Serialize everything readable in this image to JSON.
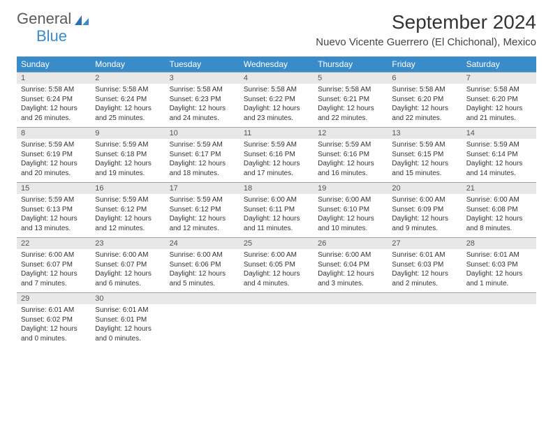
{
  "logo": {
    "general": "General",
    "blue": "Blue"
  },
  "header": {
    "month_title": "September 2024",
    "location": "Nuevo Vicente Guerrero (El Chichonal), Mexico"
  },
  "colors": {
    "header_bg": "#3a8bc9",
    "header_text": "#ffffff",
    "daynum_bg": "#e8e8e8",
    "border": "#9aa7b0",
    "body_text": "#333333"
  },
  "day_names": [
    "Sunday",
    "Monday",
    "Tuesday",
    "Wednesday",
    "Thursday",
    "Friday",
    "Saturday"
  ],
  "weeks": [
    {
      "nums": [
        "1",
        "2",
        "3",
        "4",
        "5",
        "6",
        "7"
      ],
      "cells": [
        {
          "sunrise": "Sunrise: 5:58 AM",
          "sunset": "Sunset: 6:24 PM",
          "d1": "Daylight: 12 hours",
          "d2": "and 26 minutes."
        },
        {
          "sunrise": "Sunrise: 5:58 AM",
          "sunset": "Sunset: 6:24 PM",
          "d1": "Daylight: 12 hours",
          "d2": "and 25 minutes."
        },
        {
          "sunrise": "Sunrise: 5:58 AM",
          "sunset": "Sunset: 6:23 PM",
          "d1": "Daylight: 12 hours",
          "d2": "and 24 minutes."
        },
        {
          "sunrise": "Sunrise: 5:58 AM",
          "sunset": "Sunset: 6:22 PM",
          "d1": "Daylight: 12 hours",
          "d2": "and 23 minutes."
        },
        {
          "sunrise": "Sunrise: 5:58 AM",
          "sunset": "Sunset: 6:21 PM",
          "d1": "Daylight: 12 hours",
          "d2": "and 22 minutes."
        },
        {
          "sunrise": "Sunrise: 5:58 AM",
          "sunset": "Sunset: 6:20 PM",
          "d1": "Daylight: 12 hours",
          "d2": "and 22 minutes."
        },
        {
          "sunrise": "Sunrise: 5:58 AM",
          "sunset": "Sunset: 6:20 PM",
          "d1": "Daylight: 12 hours",
          "d2": "and 21 minutes."
        }
      ]
    },
    {
      "nums": [
        "8",
        "9",
        "10",
        "11",
        "12",
        "13",
        "14"
      ],
      "cells": [
        {
          "sunrise": "Sunrise: 5:59 AM",
          "sunset": "Sunset: 6:19 PM",
          "d1": "Daylight: 12 hours",
          "d2": "and 20 minutes."
        },
        {
          "sunrise": "Sunrise: 5:59 AM",
          "sunset": "Sunset: 6:18 PM",
          "d1": "Daylight: 12 hours",
          "d2": "and 19 minutes."
        },
        {
          "sunrise": "Sunrise: 5:59 AM",
          "sunset": "Sunset: 6:17 PM",
          "d1": "Daylight: 12 hours",
          "d2": "and 18 minutes."
        },
        {
          "sunrise": "Sunrise: 5:59 AM",
          "sunset": "Sunset: 6:16 PM",
          "d1": "Daylight: 12 hours",
          "d2": "and 17 minutes."
        },
        {
          "sunrise": "Sunrise: 5:59 AM",
          "sunset": "Sunset: 6:16 PM",
          "d1": "Daylight: 12 hours",
          "d2": "and 16 minutes."
        },
        {
          "sunrise": "Sunrise: 5:59 AM",
          "sunset": "Sunset: 6:15 PM",
          "d1": "Daylight: 12 hours",
          "d2": "and 15 minutes."
        },
        {
          "sunrise": "Sunrise: 5:59 AM",
          "sunset": "Sunset: 6:14 PM",
          "d1": "Daylight: 12 hours",
          "d2": "and 14 minutes."
        }
      ]
    },
    {
      "nums": [
        "15",
        "16",
        "17",
        "18",
        "19",
        "20",
        "21"
      ],
      "cells": [
        {
          "sunrise": "Sunrise: 5:59 AM",
          "sunset": "Sunset: 6:13 PM",
          "d1": "Daylight: 12 hours",
          "d2": "and 13 minutes."
        },
        {
          "sunrise": "Sunrise: 5:59 AM",
          "sunset": "Sunset: 6:12 PM",
          "d1": "Daylight: 12 hours",
          "d2": "and 12 minutes."
        },
        {
          "sunrise": "Sunrise: 5:59 AM",
          "sunset": "Sunset: 6:12 PM",
          "d1": "Daylight: 12 hours",
          "d2": "and 12 minutes."
        },
        {
          "sunrise": "Sunrise: 6:00 AM",
          "sunset": "Sunset: 6:11 PM",
          "d1": "Daylight: 12 hours",
          "d2": "and 11 minutes."
        },
        {
          "sunrise": "Sunrise: 6:00 AM",
          "sunset": "Sunset: 6:10 PM",
          "d1": "Daylight: 12 hours",
          "d2": "and 10 minutes."
        },
        {
          "sunrise": "Sunrise: 6:00 AM",
          "sunset": "Sunset: 6:09 PM",
          "d1": "Daylight: 12 hours",
          "d2": "and 9 minutes."
        },
        {
          "sunrise": "Sunrise: 6:00 AM",
          "sunset": "Sunset: 6:08 PM",
          "d1": "Daylight: 12 hours",
          "d2": "and 8 minutes."
        }
      ]
    },
    {
      "nums": [
        "22",
        "23",
        "24",
        "25",
        "26",
        "27",
        "28"
      ],
      "cells": [
        {
          "sunrise": "Sunrise: 6:00 AM",
          "sunset": "Sunset: 6:07 PM",
          "d1": "Daylight: 12 hours",
          "d2": "and 7 minutes."
        },
        {
          "sunrise": "Sunrise: 6:00 AM",
          "sunset": "Sunset: 6:07 PM",
          "d1": "Daylight: 12 hours",
          "d2": "and 6 minutes."
        },
        {
          "sunrise": "Sunrise: 6:00 AM",
          "sunset": "Sunset: 6:06 PM",
          "d1": "Daylight: 12 hours",
          "d2": "and 5 minutes."
        },
        {
          "sunrise": "Sunrise: 6:00 AM",
          "sunset": "Sunset: 6:05 PM",
          "d1": "Daylight: 12 hours",
          "d2": "and 4 minutes."
        },
        {
          "sunrise": "Sunrise: 6:00 AM",
          "sunset": "Sunset: 6:04 PM",
          "d1": "Daylight: 12 hours",
          "d2": "and 3 minutes."
        },
        {
          "sunrise": "Sunrise: 6:01 AM",
          "sunset": "Sunset: 6:03 PM",
          "d1": "Daylight: 12 hours",
          "d2": "and 2 minutes."
        },
        {
          "sunrise": "Sunrise: 6:01 AM",
          "sunset": "Sunset: 6:03 PM",
          "d1": "Daylight: 12 hours",
          "d2": "and 1 minute."
        }
      ]
    },
    {
      "nums": [
        "29",
        "30",
        "",
        "",
        "",
        "",
        ""
      ],
      "cells": [
        {
          "sunrise": "Sunrise: 6:01 AM",
          "sunset": "Sunset: 6:02 PM",
          "d1": "Daylight: 12 hours",
          "d2": "and 0 minutes."
        },
        {
          "sunrise": "Sunrise: 6:01 AM",
          "sunset": "Sunset: 6:01 PM",
          "d1": "Daylight: 12 hours",
          "d2": "and 0 minutes."
        },
        {
          "sunrise": "",
          "sunset": "",
          "d1": "",
          "d2": ""
        },
        {
          "sunrise": "",
          "sunset": "",
          "d1": "",
          "d2": ""
        },
        {
          "sunrise": "",
          "sunset": "",
          "d1": "",
          "d2": ""
        },
        {
          "sunrise": "",
          "sunset": "",
          "d1": "",
          "d2": ""
        },
        {
          "sunrise": "",
          "sunset": "",
          "d1": "",
          "d2": ""
        }
      ]
    }
  ]
}
